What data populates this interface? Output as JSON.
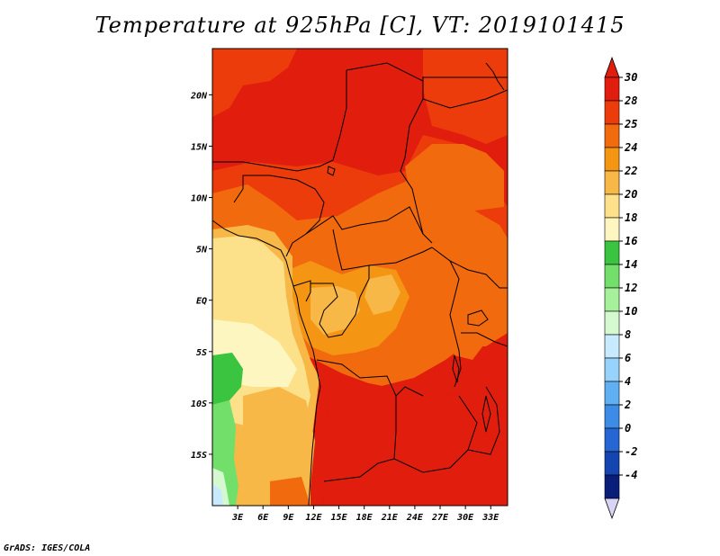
{
  "title": "Temperature at 925hPa [C], VT: 2019101415",
  "credit": "GrADS: IGES/COLA",
  "map": {
    "lon_labels": [
      "3E",
      "6E",
      "9E",
      "12E",
      "15E",
      "18E",
      "21E",
      "24E",
      "27E",
      "30E",
      "33E"
    ],
    "lat_labels": [
      "20N",
      "15N",
      "10N",
      "5N",
      "EQ",
      "5S",
      "10S",
      "15S"
    ],
    "lon_range": [
      0,
      35
    ],
    "lat_range": [
      -20,
      24.5
    ]
  },
  "colorbar": {
    "labels": [
      "30",
      "28",
      "25",
      "24",
      "22",
      "20",
      "18",
      "16",
      "14",
      "12",
      "10",
      "8",
      "6",
      "4",
      "2",
      "0",
      "-2",
      "-4"
    ],
    "colors": [
      "#e11d0e",
      "#ec3c0c",
      "#f26a0e",
      "#f59514",
      "#f8b848",
      "#fde08a",
      "#fdf6c0",
      "#3ac43f",
      "#72df6b",
      "#a7f09b",
      "#d6f8d1",
      "#c7eaff",
      "#96d2fa",
      "#5fb0f3",
      "#3c8ce7",
      "#2566d3",
      "#1545b0",
      "#0a1d78"
    ],
    "bottom_color": "#d8d4f5"
  }
}
